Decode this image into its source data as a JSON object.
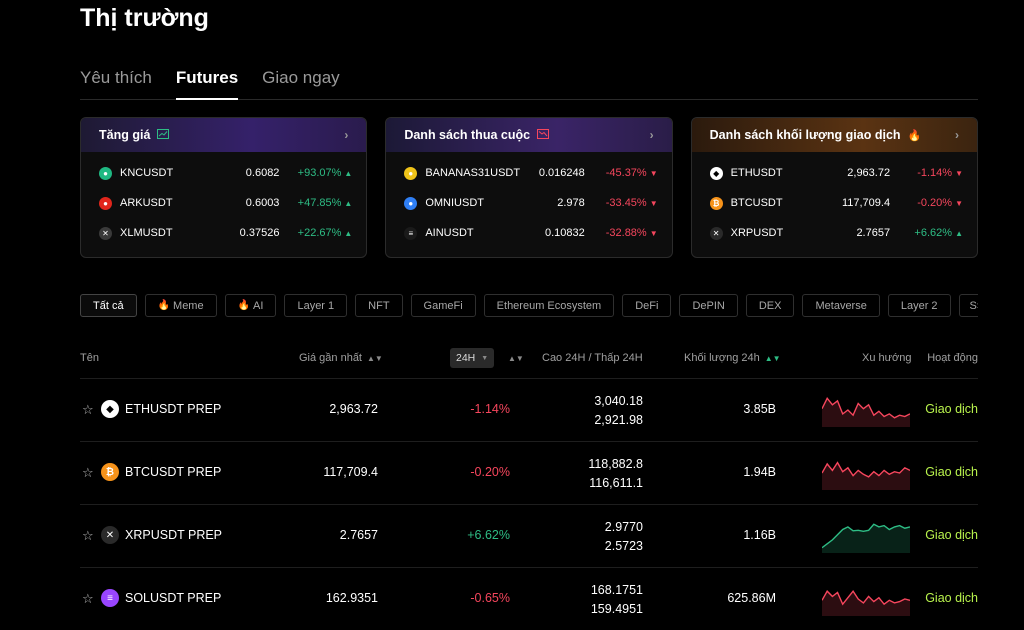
{
  "page": {
    "title": "Thị trường"
  },
  "tabs": [
    {
      "label": "Yêu thích"
    },
    {
      "label": "Futures"
    },
    {
      "label": "Giao ngay"
    }
  ],
  "cards": {
    "gainers": {
      "title": "Tăng giá",
      "rows": [
        {
          "symbol": "KNCUSDT",
          "price": "0.6082",
          "change": "+93.07%",
          "icon": "knc-icon",
          "color": "#1fb882"
        },
        {
          "symbol": "ARKUSDT",
          "price": "0.6003",
          "change": "+47.85%",
          "icon": "ark-icon",
          "color": "#e1261c"
        },
        {
          "symbol": "XLMUSDT",
          "price": "0.37526",
          "change": "+22.67%",
          "icon": "xlm-icon",
          "color": "#3a3a3a"
        }
      ]
    },
    "losers": {
      "title": "Danh sách thua cuộc",
      "rows": [
        {
          "symbol": "BANANAS31USDT",
          "price": "0.016248",
          "change": "-45.37%",
          "icon": "bananas-icon",
          "color": "#f0c419"
        },
        {
          "symbol": "OMNIUSDT",
          "price": "2.978",
          "change": "-33.45%",
          "icon": "omni-icon",
          "color": "#2f7ff5"
        },
        {
          "symbol": "AINUSDT",
          "price": "0.10832",
          "change": "-32.88%",
          "icon": "ain-icon",
          "color": "#1a1a1a"
        }
      ]
    },
    "volume": {
      "title": "Danh sách khối lượng giao dịch",
      "rows": [
        {
          "symbol": "ETHUSDT",
          "price": "2,963.72",
          "change": "-1.14%",
          "icon": "eth-icon",
          "color": "#ffffff"
        },
        {
          "symbol": "BTCUSDT",
          "price": "117,709.4",
          "change": "-0.20%",
          "icon": "btc-icon",
          "color": "#f7931a"
        },
        {
          "symbol": "XRPUSDT",
          "price": "2.7657",
          "change": "+6.62%",
          "icon": "xrp-icon",
          "color": "#2a2a2a"
        }
      ]
    }
  },
  "filters": [
    {
      "label": "Tất cả"
    },
    {
      "label": "Meme",
      "fire": true
    },
    {
      "label": "AI",
      "fire": true
    },
    {
      "label": "Layer 1"
    },
    {
      "label": "NFT"
    },
    {
      "label": "GameFi"
    },
    {
      "label": "Ethereum Ecosystem"
    },
    {
      "label": "DeFi"
    },
    {
      "label": "DePIN"
    },
    {
      "label": "DEX"
    },
    {
      "label": "Metaverse"
    },
    {
      "label": "Layer 2"
    },
    {
      "label": "S"
    }
  ],
  "table": {
    "headers": {
      "name": "Tên",
      "last_price": "Giá gần nhất",
      "period": "24H",
      "high_low": "Cao 24H / Thấp 24H",
      "volume": "Khối lượng 24h",
      "trend": "Xu hướng",
      "action": "Hoạt động"
    },
    "rows": [
      {
        "symbol": "ETHUSDT PREP",
        "price": "2,963.72",
        "change": "-1.14%",
        "high": "3,040.18",
        "low": "2,921.98",
        "volume": "3.85B",
        "action": "Giao dịch",
        "icon_color": "#ffffff",
        "trend": [
          0.55,
          0.95,
          0.7,
          0.85,
          0.35,
          0.5,
          0.3,
          0.75,
          0.55,
          0.7,
          0.3,
          0.45,
          0.25,
          0.35,
          0.2,
          0.3,
          0.25,
          0.35
        ]
      },
      {
        "symbol": "BTCUSDT PREP",
        "price": "117,709.4",
        "change": "-0.20%",
        "high": "118,882.8",
        "low": "116,611.1",
        "volume": "1.94B",
        "action": "Giao dịch",
        "icon_color": "#f7931a",
        "trend": [
          0.5,
          0.85,
          0.6,
          0.9,
          0.55,
          0.7,
          0.4,
          0.6,
          0.45,
          0.35,
          0.55,
          0.4,
          0.6,
          0.45,
          0.55,
          0.5,
          0.7,
          0.6
        ]
      },
      {
        "symbol": "XRPUSDT PREP",
        "price": "2.7657",
        "change": "+6.62%",
        "high": "2.9770",
        "low": "2.5723",
        "volume": "1.16B",
        "action": "Giao dịch",
        "icon_color": "#2a2a2a",
        "trend": [
          0.05,
          0.2,
          0.35,
          0.55,
          0.75,
          0.85,
          0.7,
          0.72,
          0.68,
          0.72,
          0.95,
          0.85,
          0.9,
          0.75,
          0.85,
          0.9,
          0.8,
          0.85
        ]
      },
      {
        "symbol": "SOLUSDT PREP",
        "price": "162.9351",
        "change": "-0.65%",
        "high": "168.1751",
        "low": "159.4951",
        "volume": "625.86M",
        "action": "Giao dịch",
        "icon_color": "#9945ff",
        "trend": [
          0.45,
          0.8,
          0.6,
          0.75,
          0.3,
          0.55,
          0.8,
          0.5,
          0.35,
          0.6,
          0.4,
          0.55,
          0.3,
          0.45,
          0.35,
          0.4,
          0.5,
          0.45
        ]
      }
    ]
  },
  "colors": {
    "up": "#2ebd85",
    "down": "#f6465d",
    "trade": "#b9f34d"
  }
}
